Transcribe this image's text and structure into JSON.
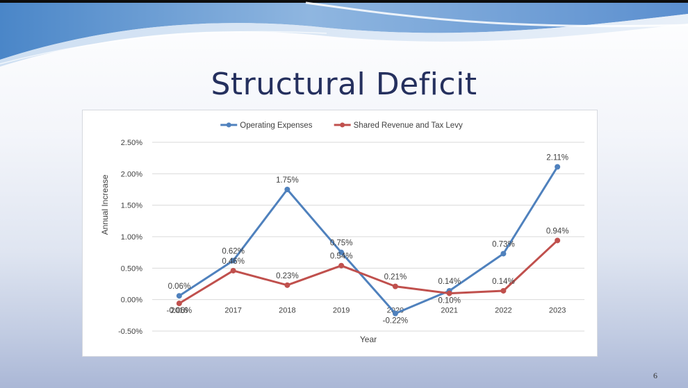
{
  "slide": {
    "title": "Structural Deficit",
    "page_number": "6"
  },
  "chart_data": {
    "type": "line",
    "title": "",
    "xlabel": "Year",
    "ylabel": "Annual Increase",
    "categories": [
      "2016",
      "2017",
      "2018",
      "2019",
      "2020",
      "2021",
      "2022",
      "2023"
    ],
    "ylim": [
      -0.5,
      2.5
    ],
    "yticks": [
      -0.5,
      0,
      0.5,
      1,
      1.5,
      2,
      2.5
    ],
    "ytick_labels": [
      "-0.50%",
      "0.00%",
      "0.50%",
      "1.00%",
      "1.50%",
      "2.00%",
      "2.50%"
    ],
    "grid": true,
    "legend_position": "top",
    "series": [
      {
        "name": "Operating Expenses",
        "color": "#4f81bd",
        "values": [
          0.06,
          0.62,
          1.75,
          0.75,
          -0.22,
          0.14,
          0.73,
          2.11
        ],
        "labels": [
          "0.06%",
          "0.62%",
          "1.75%",
          "0.75%",
          "-0.22%",
          "0.14%",
          "0.73%",
          "2.11%"
        ]
      },
      {
        "name": "Shared Revenue and Tax Levy",
        "color": "#c0504d",
        "values": [
          -0.06,
          0.46,
          0.23,
          0.54,
          0.21,
          0.1,
          0.14,
          0.94
        ],
        "labels": [
          "-0.06%",
          "0.46%",
          "0.23%",
          "0.54%",
          "0.21%",
          "0.10%",
          "0.14%",
          "0.94%"
        ]
      }
    ]
  }
}
